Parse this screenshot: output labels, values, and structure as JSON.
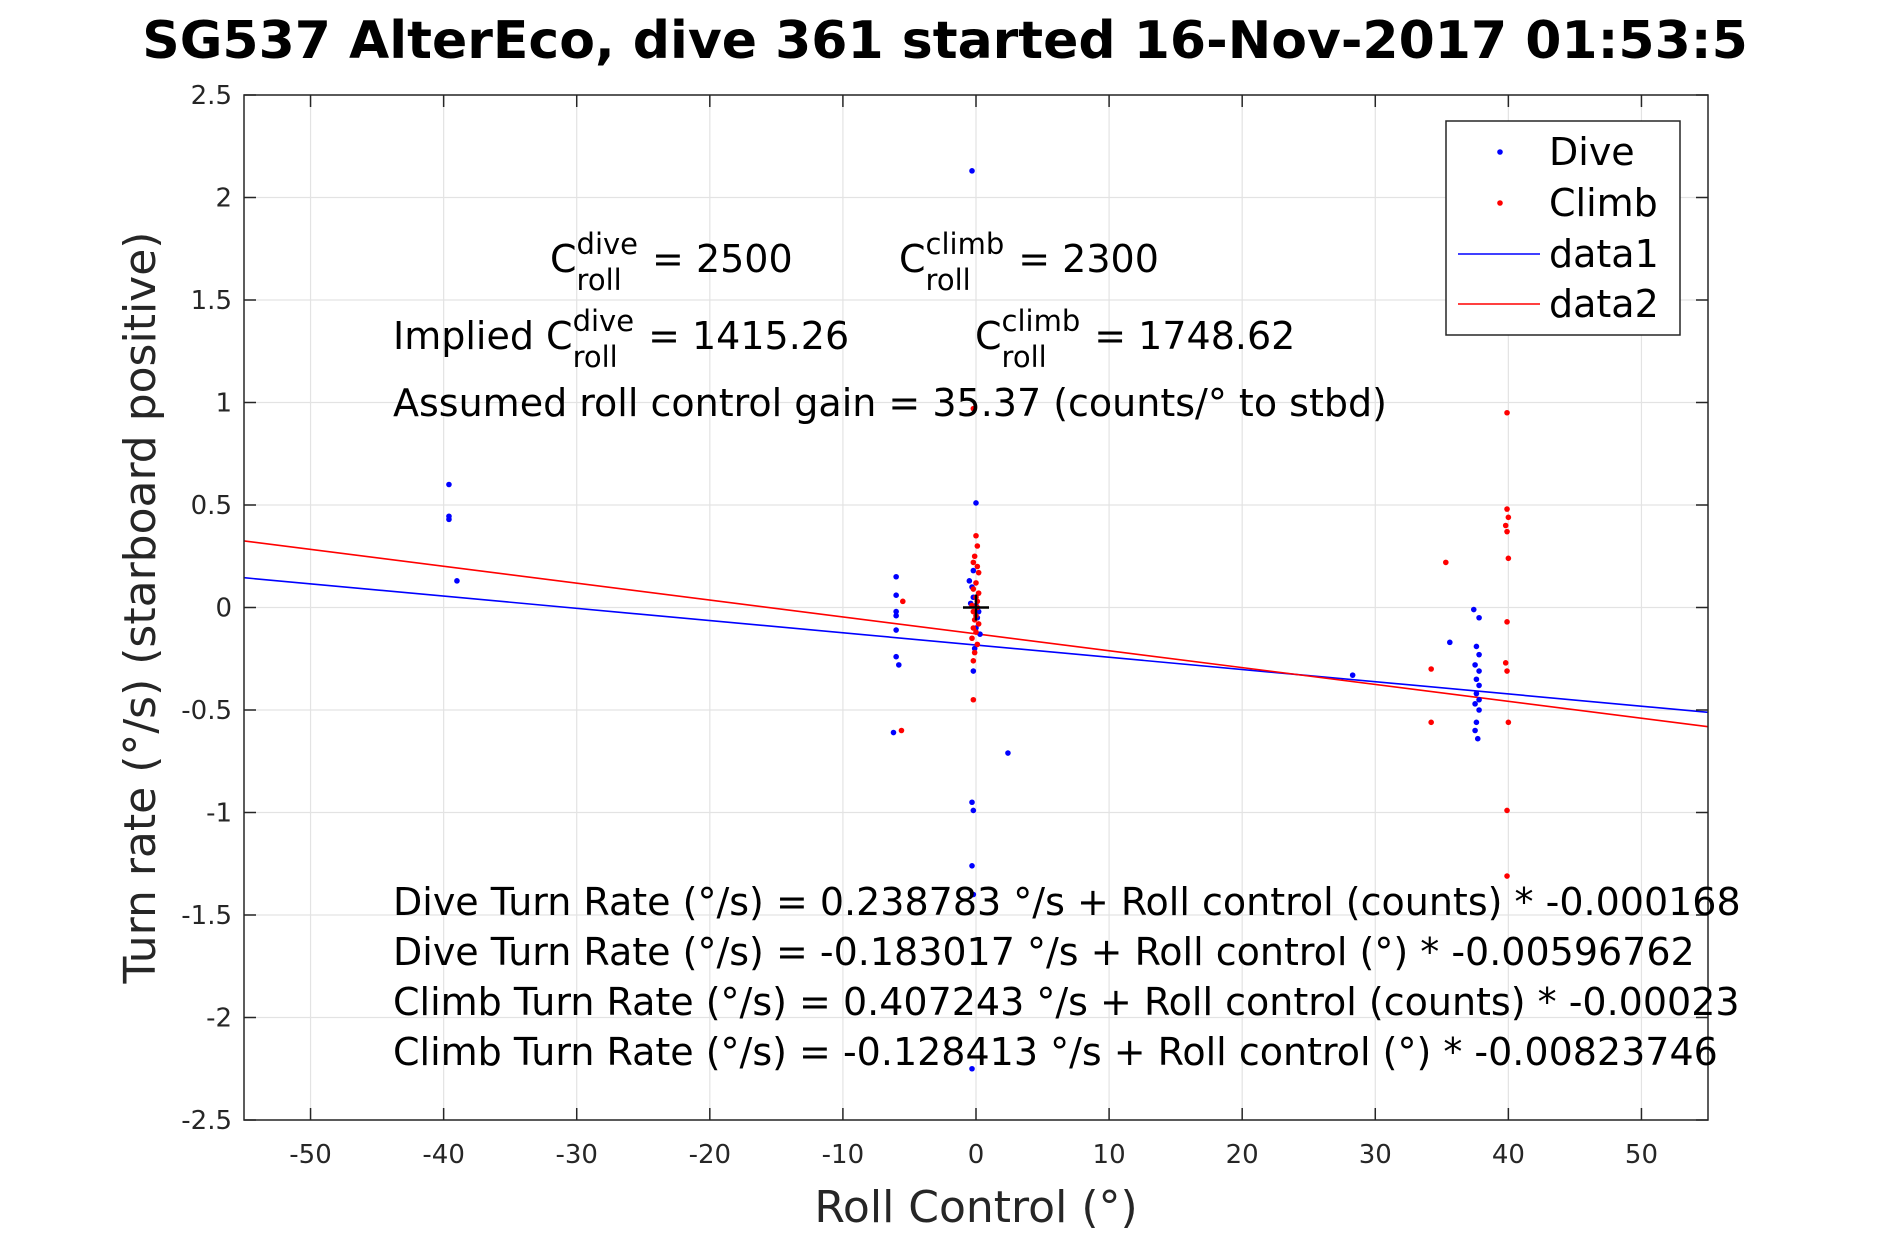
{
  "chart_data": {
    "type": "scatter",
    "title": "SG537 AlterEco, dive 361 started 16-Nov-2017 01:53:5",
    "xlabel": "Roll Control (°)",
    "ylabel": "Turn rate (°/s) (starboard positive)",
    "xlim": [
      -55,
      55
    ],
    "ylim": [
      -2.5,
      2.5
    ],
    "x_ticks": [
      -50,
      -40,
      -30,
      -20,
      -10,
      0,
      10,
      20,
      30,
      40,
      50
    ],
    "x_tick_labels": [
      "-50",
      "-40",
      "-30",
      "-20",
      "-10",
      "0",
      "10",
      "20",
      "30",
      "40",
      "50"
    ],
    "y_ticks": [
      2.5,
      2,
      1.5,
      1,
      0.5,
      0,
      -0.5,
      -1,
      -1.5,
      -2,
      -2.5
    ],
    "y_tick_labels": [
      "2.5",
      "2",
      "1.5",
      "1",
      "0.5",
      "0",
      "-0.5",
      "-1",
      "-1.5",
      "-2",
      "-2.5"
    ],
    "grid": true,
    "legend_position": "top-right",
    "series": [
      {
        "name": "Dive",
        "kind": "points",
        "color": "#0000ff",
        "points": [
          [
            -39.6,
            0.6
          ],
          [
            -39.6,
            0.445
          ],
          [
            -39.6,
            0.43
          ],
          [
            -39.0,
            0.13
          ],
          [
            -6.0,
            0.15
          ],
          [
            -6.0,
            0.06
          ],
          [
            -6.0,
            -0.02
          ],
          [
            -6.0,
            -0.04
          ],
          [
            -6.0,
            -0.11
          ],
          [
            -6.0,
            -0.24
          ],
          [
            -5.8,
            -0.28
          ],
          [
            -6.2,
            -0.61
          ],
          [
            -0.3,
            2.13
          ],
          [
            0.0,
            0.51
          ],
          [
            -0.2,
            0.18
          ],
          [
            -0.5,
            0.13
          ],
          [
            -0.3,
            0.1
          ],
          [
            -0.2,
            0.05
          ],
          [
            -0.4,
            0.02
          ],
          [
            0.0,
            0.01
          ],
          [
            0.2,
            -0.02
          ],
          [
            0.1,
            -0.05
          ],
          [
            0.0,
            -0.1
          ],
          [
            0.3,
            -0.13
          ],
          [
            -0.1,
            -0.2
          ],
          [
            -0.2,
            -0.31
          ],
          [
            2.4,
            -0.71
          ],
          [
            -0.3,
            -0.95
          ],
          [
            -0.2,
            -0.99
          ],
          [
            -0.3,
            -1.26
          ],
          [
            -0.2,
            -1.4
          ],
          [
            -0.3,
            -2.25
          ],
          [
            28.3,
            -0.33
          ],
          [
            35.6,
            -0.17
          ],
          [
            37.4,
            -0.01
          ],
          [
            37.8,
            -0.05
          ],
          [
            37.6,
            -0.19
          ],
          [
            37.8,
            -0.23
          ],
          [
            37.5,
            -0.28
          ],
          [
            37.8,
            -0.31
          ],
          [
            37.6,
            -0.35
          ],
          [
            37.8,
            -0.38
          ],
          [
            37.6,
            -0.42
          ],
          [
            37.8,
            -0.45
          ],
          [
            37.5,
            -0.47
          ],
          [
            37.8,
            -0.5
          ],
          [
            37.6,
            -0.56
          ],
          [
            37.5,
            -0.6
          ],
          [
            37.7,
            -0.64
          ]
        ]
      },
      {
        "name": "Climb",
        "kind": "points",
        "color": "#ff0000",
        "points": [
          [
            -5.5,
            0.03
          ],
          [
            -5.6,
            -0.6
          ],
          [
            -0.2,
            0.97
          ],
          [
            0.0,
            0.35
          ],
          [
            0.1,
            0.3
          ],
          [
            -0.1,
            0.25
          ],
          [
            -0.2,
            0.22
          ],
          [
            0.1,
            0.2
          ],
          [
            0.2,
            0.17
          ],
          [
            0.0,
            0.12
          ],
          [
            -0.2,
            0.09
          ],
          [
            0.2,
            0.07
          ],
          [
            0.0,
            0.05
          ],
          [
            0.1,
            0.03
          ],
          [
            -0.3,
            0.01
          ],
          [
            0.1,
            0.0
          ],
          [
            -0.2,
            -0.02
          ],
          [
            0.0,
            -0.04
          ],
          [
            -0.1,
            -0.06
          ],
          [
            0.2,
            -0.08
          ],
          [
            -0.2,
            -0.1
          ],
          [
            0.0,
            -0.12
          ],
          [
            -0.3,
            -0.15
          ],
          [
            0.1,
            -0.18
          ],
          [
            -0.1,
            -0.22
          ],
          [
            -0.2,
            -0.26
          ],
          [
            -0.2,
            -0.45
          ],
          [
            35.3,
            0.22
          ],
          [
            34.2,
            -0.3
          ],
          [
            34.2,
            -0.56
          ],
          [
            39.9,
            0.95
          ],
          [
            39.9,
            0.48
          ],
          [
            40.0,
            0.44
          ],
          [
            39.8,
            0.4
          ],
          [
            39.9,
            0.37
          ],
          [
            40.0,
            0.24
          ],
          [
            39.9,
            -0.07
          ],
          [
            39.8,
            -0.27
          ],
          [
            39.9,
            -0.31
          ],
          [
            40.0,
            -0.56
          ],
          [
            39.9,
            -0.99
          ],
          [
            39.9,
            -1.31
          ]
        ]
      },
      {
        "name": "data1",
        "kind": "line",
        "color": "#0000ff",
        "intercept": -0.183017,
        "slope": -0.00596762
      },
      {
        "name": "data2",
        "kind": "line",
        "color": "#ff0000",
        "intercept": -0.128413,
        "slope": -0.00823746
      }
    ],
    "center_marker": {
      "x": 0,
      "y": 0,
      "symbol": "+"
    },
    "annotations": {
      "c_roll_dive": {
        "base": "C",
        "sup": "dive",
        "sub": "roll",
        "value": "= 2500"
      },
      "c_roll_climb": {
        "base": "C",
        "sup": "climb",
        "sub": "roll",
        "value": "= 2300"
      },
      "implied_prefix": "Implied ",
      "implied_dive": {
        "base": "C",
        "sup": "dive",
        "sub": "roll",
        "value": "= 1415.26"
      },
      "implied_climb": {
        "base": "C",
        "sup": "climb",
        "sub": "roll",
        "value": "= 1748.62"
      },
      "gain_line": "Assumed roll control gain = 35.37 (counts/° to stbd)",
      "fit_lines": [
        "Dive Turn Rate (°/s) = 0.238783 °/s + Roll control (counts) * -0.000168",
        "Dive Turn Rate (°/s) = -0.183017 °/s + Roll control (°) * -0.00596762",
        "Climb Turn Rate (°/s) = 0.407243 °/s + Roll control (counts) * -0.00023",
        "Climb Turn Rate (°/s) = -0.128413 °/s + Roll control (°) * -0.00823746"
      ]
    }
  }
}
